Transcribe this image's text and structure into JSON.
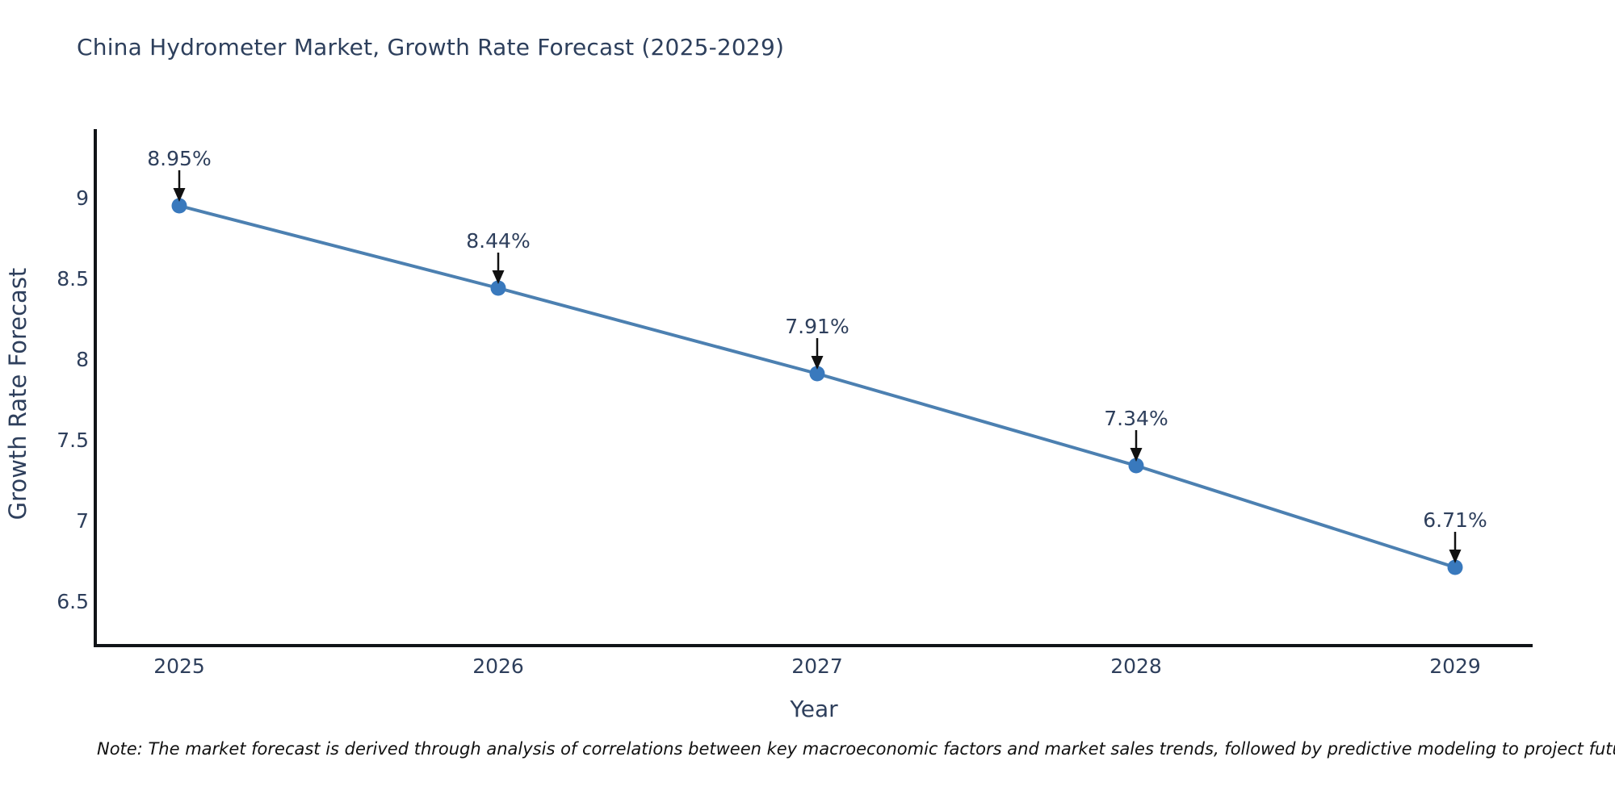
{
  "title": "China Hydrometer Market, Growth Rate Forecast (2025-2029)",
  "note": "Note: The market forecast is derived through analysis of correlations between key macroeconomic factors and market sales trends, followed by predictive modeling to project future sales",
  "chart_data": {
    "type": "line",
    "title": "China Hydrometer Market, Growth Rate Forecast (2025-2029)",
    "x": [
      "2025",
      "2026",
      "2027",
      "2028",
      "2029"
    ],
    "values": [
      8.95,
      8.44,
      7.91,
      7.34,
      6.71
    ],
    "point_labels": [
      "8.95%",
      "8.44%",
      "7.91%",
      "7.34%",
      "6.71%"
    ],
    "xlabel": "Year",
    "ylabel": "Growth Rate Forecast",
    "yticks": [
      6.5,
      7,
      7.5,
      8,
      8.5,
      9
    ],
    "ylim": [
      6.225,
      9.425
    ],
    "grid": false,
    "legend": "none",
    "colors": {
      "line": "#4c80b1",
      "marker": "#3979bd",
      "axis": "#111418",
      "text": "#2e3f5c",
      "annotation_arrow": "#111111",
      "background": "#ffffff"
    }
  }
}
